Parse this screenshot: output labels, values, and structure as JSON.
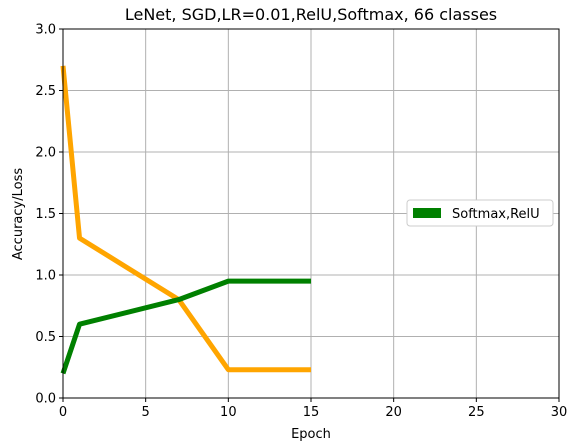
{
  "chart_data": {
    "type": "line",
    "title": "LeNet, SGD,LR=0.01,RelU,Softmax, 66 classes",
    "xlabel": "Epoch",
    "ylabel": "Accuracy/Loss",
    "xlim": [
      0,
      30
    ],
    "ylim": [
      0,
      3.0
    ],
    "xticks": [
      0,
      5,
      10,
      15,
      20,
      25,
      30
    ],
    "yticks": [
      0.0,
      0.5,
      1.0,
      1.5,
      2.0,
      2.5,
      3.0
    ],
    "xtick_labels": [
      "0",
      "5",
      "10",
      "15",
      "20",
      "25",
      "30"
    ],
    "ytick_labels": [
      "0.0",
      "0.5",
      "1.0",
      "1.5",
      "2.0",
      "2.5",
      "3.0"
    ],
    "grid": true,
    "legend_position": "center-right",
    "series": [
      {
        "name": "Softmax,RelU",
        "color": "#008000",
        "x": [
          0,
          1,
          7,
          10,
          15
        ],
        "y": [
          0.2,
          0.6,
          0.8,
          0.95,
          0.95
        ]
      },
      {
        "color": "#ffa500",
        "x": [
          0,
          1,
          7,
          10,
          15
        ],
        "y": [
          2.7,
          1.3,
          0.8,
          0.23,
          0.23
        ]
      }
    ],
    "legend": [
      {
        "label": "Softmax,RelU",
        "color": "#008000"
      }
    ]
  }
}
